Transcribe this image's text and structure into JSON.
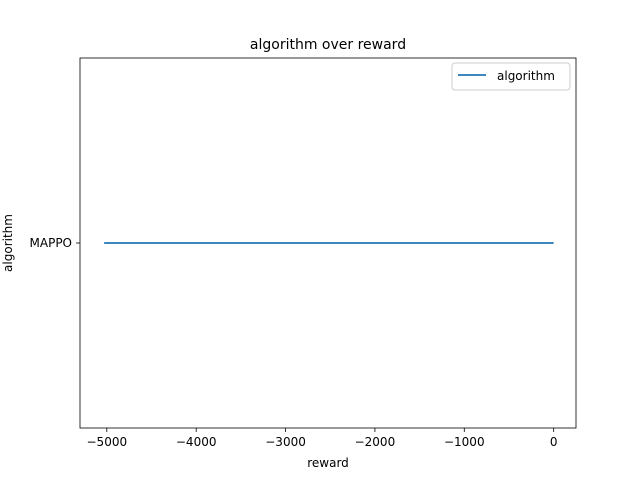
{
  "chart_data": {
    "type": "line",
    "title": "algorithm over reward",
    "xlabel": "reward",
    "ylabel": "algorithm",
    "xlim": [
      -5300,
      250
    ],
    "x_ticks": [
      -5000,
      -4000,
      -3000,
      -2000,
      -1000,
      0
    ],
    "x_tick_labels": [
      "−5000",
      "−4000",
      "−3000",
      "−2000",
      "−1000",
      "0"
    ],
    "categories": [
      "MAPPO"
    ],
    "series": [
      {
        "name": "algorithm",
        "color": "#1f77b4",
        "x": [
          -5030,
          0
        ],
        "y": [
          "MAPPO",
          "MAPPO"
        ]
      }
    ],
    "legend": {
      "placement": "top-right",
      "entries": [
        "algorithm"
      ]
    },
    "grid": false
  }
}
